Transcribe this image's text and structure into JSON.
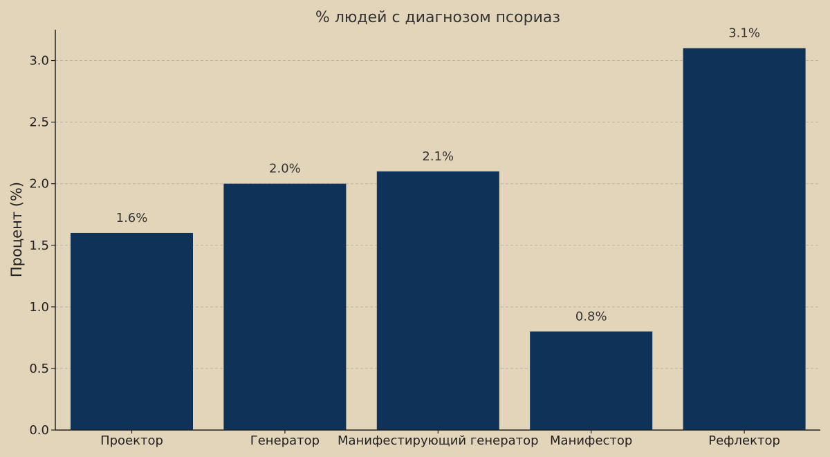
{
  "chart_data": {
    "type": "bar",
    "title": "% людей с диагнозом псориаз",
    "xlabel": "",
    "ylabel": "Процент (%)",
    "categories": [
      "Проектор",
      "Генератор",
      "Манифестирующий генератор",
      "Манифестор",
      "Рефлектор"
    ],
    "values": [
      1.6,
      2.0,
      2.1,
      0.8,
      3.1
    ],
    "data_labels": [
      "1.6%",
      "2.0%",
      "2.1%",
      "0.8%",
      "3.1%"
    ],
    "ylim": [
      0,
      3.25
    ],
    "yticks": [
      0.0,
      0.5,
      1.0,
      1.5,
      2.0,
      2.5,
      3.0
    ],
    "ytick_labels": [
      "0.0",
      "0.5",
      "1.0",
      "1.5",
      "2.0",
      "2.5",
      "3.0"
    ],
    "grid": true,
    "colors": {
      "bar": "#0f3358",
      "background": "#e2d5b9"
    }
  }
}
